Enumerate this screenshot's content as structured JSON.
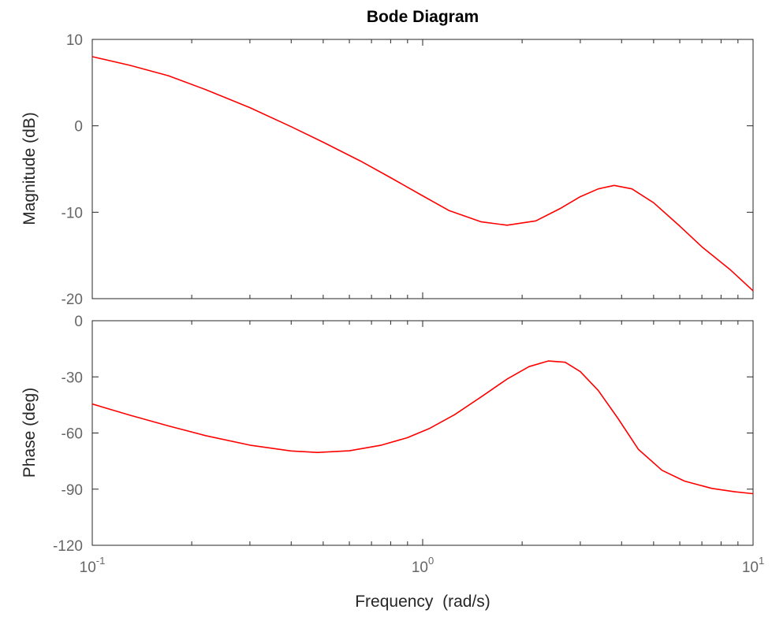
{
  "chart_data": {
    "type": "line",
    "title": "Bode Diagram",
    "xlabel": "Frequency  (rad/s)",
    "x_scale": "log",
    "xlim": [
      0.1,
      10
    ],
    "x_ticks": [
      {
        "value": 0.1,
        "base": "10",
        "exp": "-1"
      },
      {
        "value": 1,
        "base": "10",
        "exp": "0"
      },
      {
        "value": 10,
        "base": "10",
        "exp": "1"
      }
    ],
    "grid": false,
    "line_color": "#ff0000",
    "panels": [
      {
        "name": "magnitude",
        "ylabel": "Magnitude (dB)",
        "ylim": [
          -20,
          10
        ],
        "y_ticks": [
          10,
          0,
          -10,
          -20
        ],
        "y_tick_labels": [
          "10",
          "0",
          "-10",
          "-20"
        ],
        "x": [
          0.1,
          0.13,
          0.17,
          0.22,
          0.3,
          0.4,
          0.5,
          0.65,
          0.8,
          1.0,
          1.2,
          1.5,
          1.8,
          2.2,
          2.6,
          3.0,
          3.4,
          3.8,
          4.3,
          5.0,
          6.0,
          7.0,
          8.5,
          10.0
        ],
        "values": [
          8.0,
          7.0,
          5.8,
          4.2,
          2.1,
          -0.1,
          -1.9,
          -4.1,
          -6.0,
          -8.1,
          -9.8,
          -11.1,
          -11.5,
          -11.0,
          -9.6,
          -8.2,
          -7.3,
          -6.9,
          -7.3,
          -8.9,
          -11.6,
          -14.0,
          -16.6,
          -19.1
        ]
      },
      {
        "name": "phase",
        "ylabel": "Phase (deg)",
        "ylim": [
          -120,
          0
        ],
        "y_ticks": [
          0,
          -30,
          -60,
          -90,
          -120
        ],
        "y_tick_labels": [
          "0",
          "-30",
          "-60",
          "-90",
          "-120"
        ],
        "x": [
          0.1,
          0.13,
          0.17,
          0.22,
          0.3,
          0.4,
          0.48,
          0.6,
          0.75,
          0.9,
          1.05,
          1.25,
          1.5,
          1.8,
          2.1,
          2.4,
          2.7,
          3.0,
          3.4,
          3.9,
          4.5,
          5.3,
          6.2,
          7.5,
          8.8,
          10.0
        ],
        "values": [
          -44.5,
          -50.5,
          -56.2,
          -61.4,
          -66.5,
          -69.6,
          -70.4,
          -69.5,
          -66.5,
          -62.5,
          -57.5,
          -50.2,
          -40.8,
          -31.2,
          -24.5,
          -21.5,
          -22.2,
          -27.2,
          -37.3,
          -52.2,
          -68.8,
          -79.9,
          -85.7,
          -89.6,
          -91.4,
          -92.4
        ]
      }
    ]
  }
}
